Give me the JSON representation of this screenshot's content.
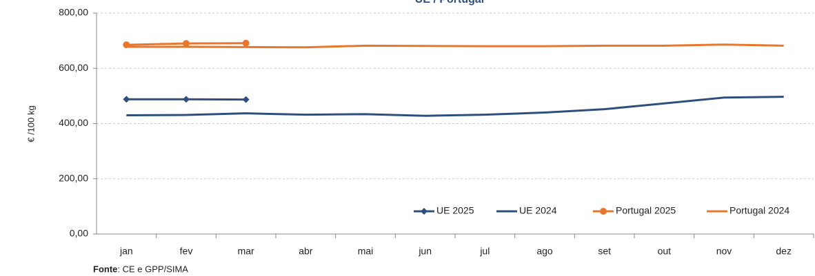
{
  "chart_data": {
    "type": "line",
    "title": "UE / Portugal",
    "y_label": "€ /100 kg",
    "source_label": "Fonte",
    "source_text": ": CE e GPP/SIMA",
    "categories": [
      "jan",
      "fev",
      "mar",
      "abr",
      "mai",
      "jun",
      "jul",
      "ago",
      "set",
      "out",
      "nov",
      "dez"
    ],
    "series": [
      {
        "name": "UE 2025",
        "color": "#2e4f7e",
        "marker": "diamond",
        "values": [
          488,
          488,
          487,
          null,
          null,
          null,
          null,
          null,
          null,
          null,
          null,
          null
        ]
      },
      {
        "name": "UE 2024",
        "color": "#2e4f7e",
        "marker": "none",
        "values": [
          430,
          431,
          437,
          432,
          434,
          428,
          432,
          440,
          452,
          473,
          494,
          497
        ]
      },
      {
        "name": "Portugal 2025",
        "color": "#e8772e",
        "marker": "circle",
        "values": [
          685,
          690,
          691,
          null,
          null,
          null,
          null,
          null,
          null,
          null,
          null,
          null
        ]
      },
      {
        "name": "Portugal 2024",
        "color": "#e8772e",
        "marker": "none",
        "values": [
          678,
          678,
          677,
          676,
          682,
          681,
          680,
          680,
          682,
          682,
          686,
          682
        ]
      }
    ],
    "ylim": [
      0,
      800
    ],
    "yticks": [
      {
        "value": 0,
        "label": "0,00"
      },
      {
        "value": 200,
        "label": "200,00"
      },
      {
        "value": 400,
        "label": "400,00"
      },
      {
        "value": 600,
        "label": "600,00"
      },
      {
        "value": 800,
        "label": "800,00"
      }
    ],
    "grid": true,
    "legend": "bottom-right"
  }
}
